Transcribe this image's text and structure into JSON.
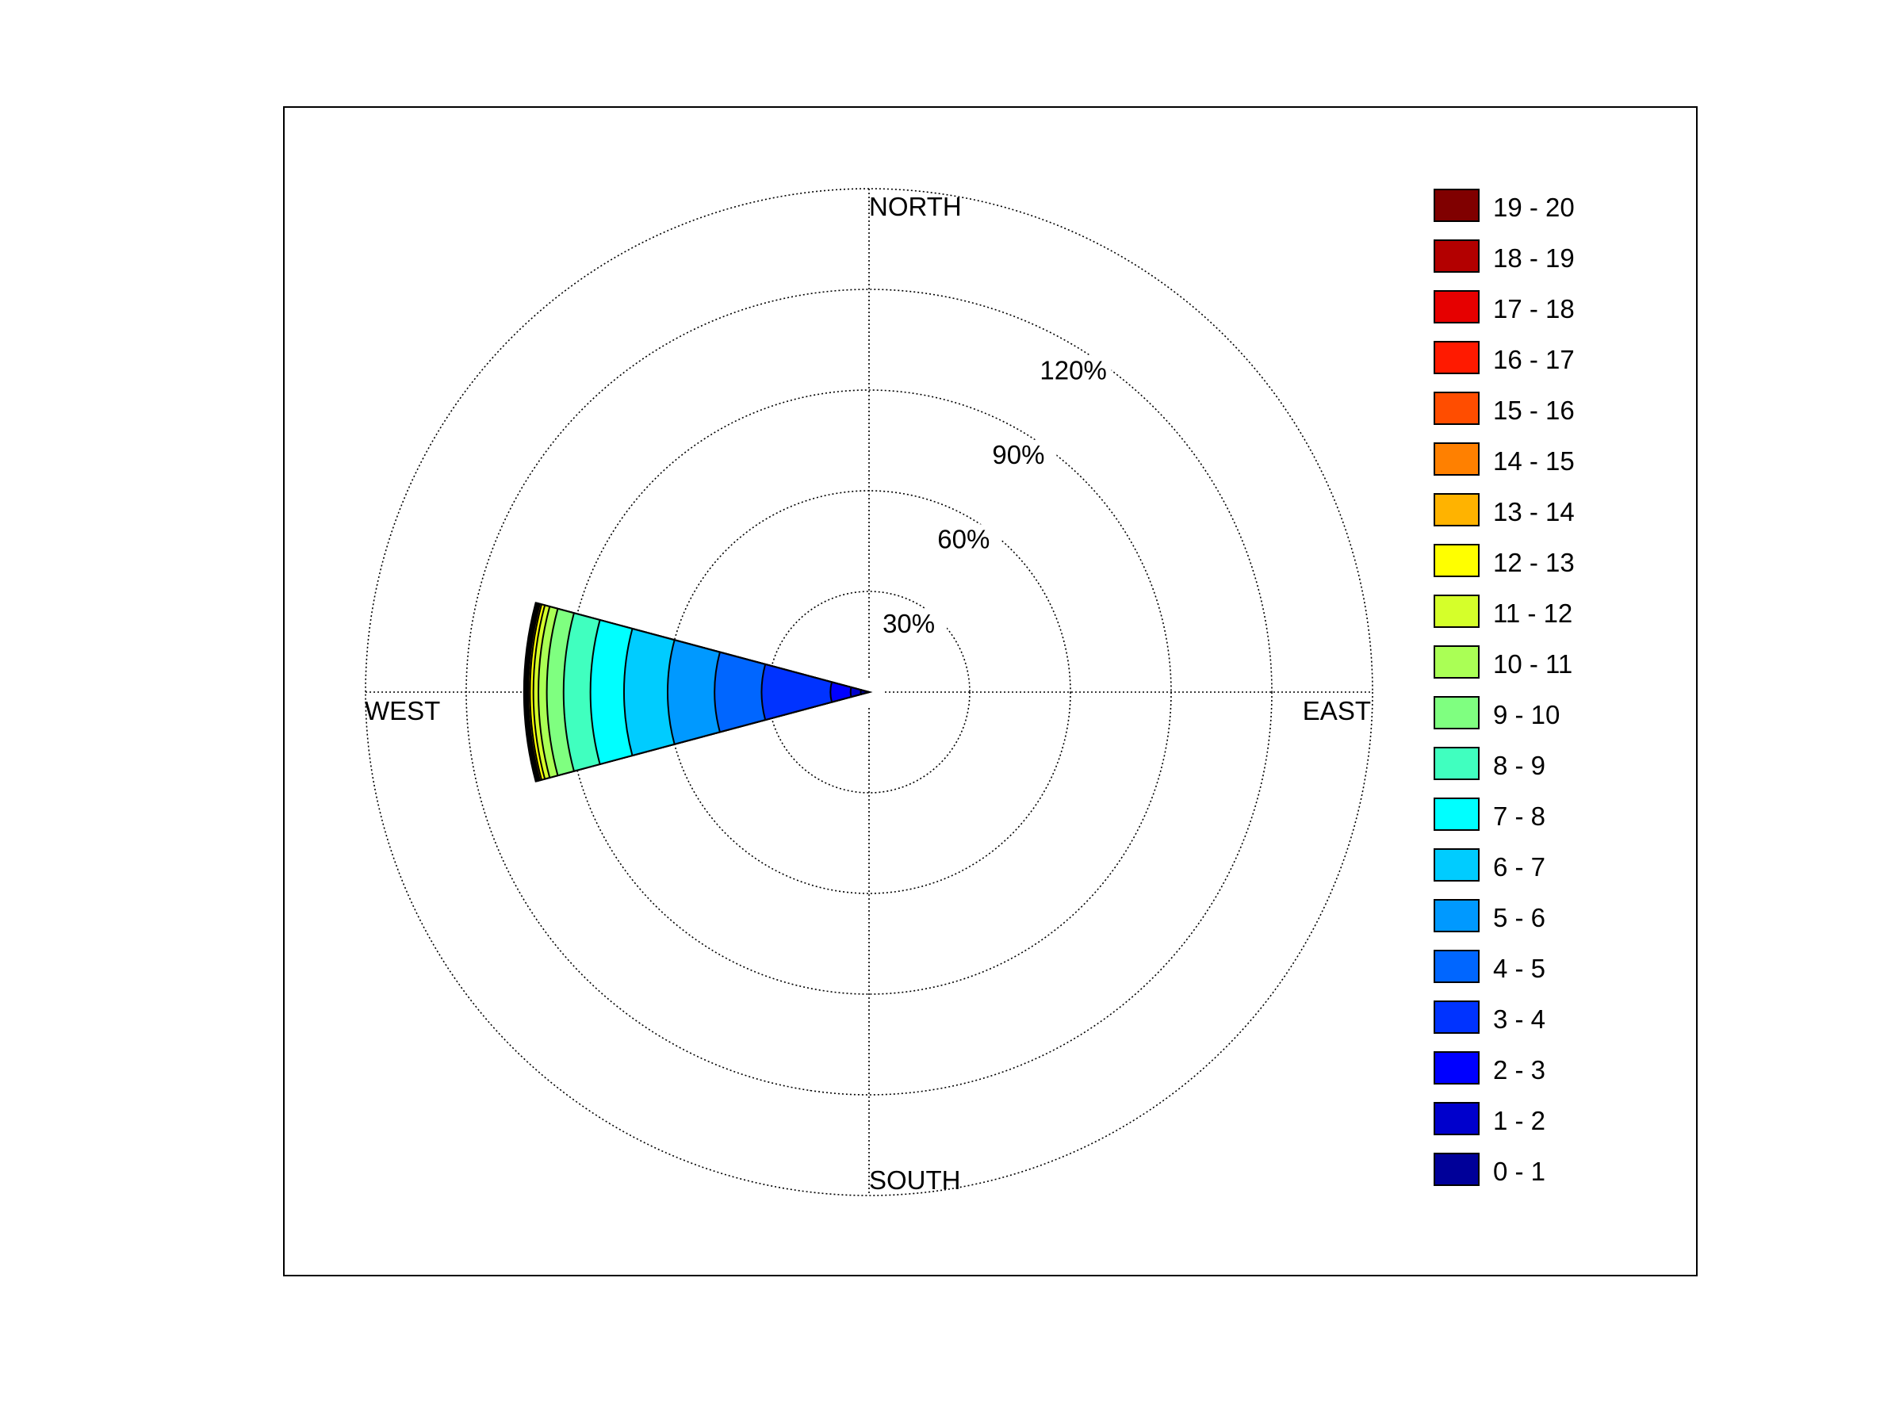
{
  "chart_data": {
    "type": "wind-rose",
    "direction_labels": {
      "north": "NORTH",
      "south": "SOUTH",
      "east": "EAST",
      "west": "WEST"
    },
    "radial_ticks": [
      30,
      60,
      90,
      120
    ],
    "radial_tick_labels": [
      "30%",
      "60%",
      "90%",
      "120%"
    ],
    "radial_max": 150,
    "grid": true,
    "legend_position": "right",
    "sectors": [
      {
        "direction": "WEST",
        "center_angle_deg": 270,
        "width_deg": 30,
        "bins": [
          {
            "range": "0 - 1",
            "cumulative_percent": 2.5
          },
          {
            "range": "1 - 2",
            "cumulative_percent": 5.5
          },
          {
            "range": "2 - 3",
            "cumulative_percent": 11.5
          },
          {
            "range": "3 - 4",
            "cumulative_percent": 32
          },
          {
            "range": "4 - 5",
            "cumulative_percent": 46
          },
          {
            "range": "5 - 6",
            "cumulative_percent": 60
          },
          {
            "range": "6 - 7",
            "cumulative_percent": 73
          },
          {
            "range": "7 - 8",
            "cumulative_percent": 83
          },
          {
            "range": "8 - 9",
            "cumulative_percent": 91
          },
          {
            "range": "9 - 10",
            "cumulative_percent": 96
          },
          {
            "range": "10 - 11",
            "cumulative_percent": 98.5
          },
          {
            "range": "11 - 12",
            "cumulative_percent": 100
          },
          {
            "range": "12 - 13",
            "cumulative_percent": 101
          },
          {
            "range": "13 - 14",
            "cumulative_percent": 101.5
          },
          {
            "range": "14 - 15",
            "cumulative_percent": 101.8
          },
          {
            "range": "15 - 16",
            "cumulative_percent": 102
          },
          {
            "range": "16 - 17",
            "cumulative_percent": 102.2
          },
          {
            "range": "17 - 18",
            "cumulative_percent": 102.4
          },
          {
            "range": "18 - 19",
            "cumulative_percent": 102.6
          },
          {
            "range": "19 - 20",
            "cumulative_percent": 102.8
          }
        ]
      }
    ],
    "legend": [
      {
        "label": "19 - 20",
        "color": "#800000"
      },
      {
        "label": "18 - 19",
        "color": "#B30000"
      },
      {
        "label": "17 - 18",
        "color": "#E60000"
      },
      {
        "label": "16 - 17",
        "color": "#FF1A00"
      },
      {
        "label": "15 - 16",
        "color": "#FF4D00"
      },
      {
        "label": "14 - 15",
        "color": "#FF8000"
      },
      {
        "label": "13 - 14",
        "color": "#FFB300"
      },
      {
        "label": "12 - 13",
        "color": "#FFFF00"
      },
      {
        "label": "11 - 12",
        "color": "#D5FF2A"
      },
      {
        "label": "10 - 11",
        "color": "#AAFF55"
      },
      {
        "label": "9 - 10",
        "color": "#7FFF80"
      },
      {
        "label": "8 - 9",
        "color": "#40FFBF"
      },
      {
        "label": "7 - 8",
        "color": "#00FFFF"
      },
      {
        "label": "6 - 7",
        "color": "#00CCFF"
      },
      {
        "label": "5 - 6",
        "color": "#0099FF"
      },
      {
        "label": "4 - 5",
        "color": "#0066FF"
      },
      {
        "label": "3 - 4",
        "color": "#0033FF"
      },
      {
        "label": "2 - 3",
        "color": "#0000FF"
      },
      {
        "label": "1 - 2",
        "color": "#0000CC"
      },
      {
        "label": "0 - 1",
        "color": "#000099"
      }
    ]
  }
}
